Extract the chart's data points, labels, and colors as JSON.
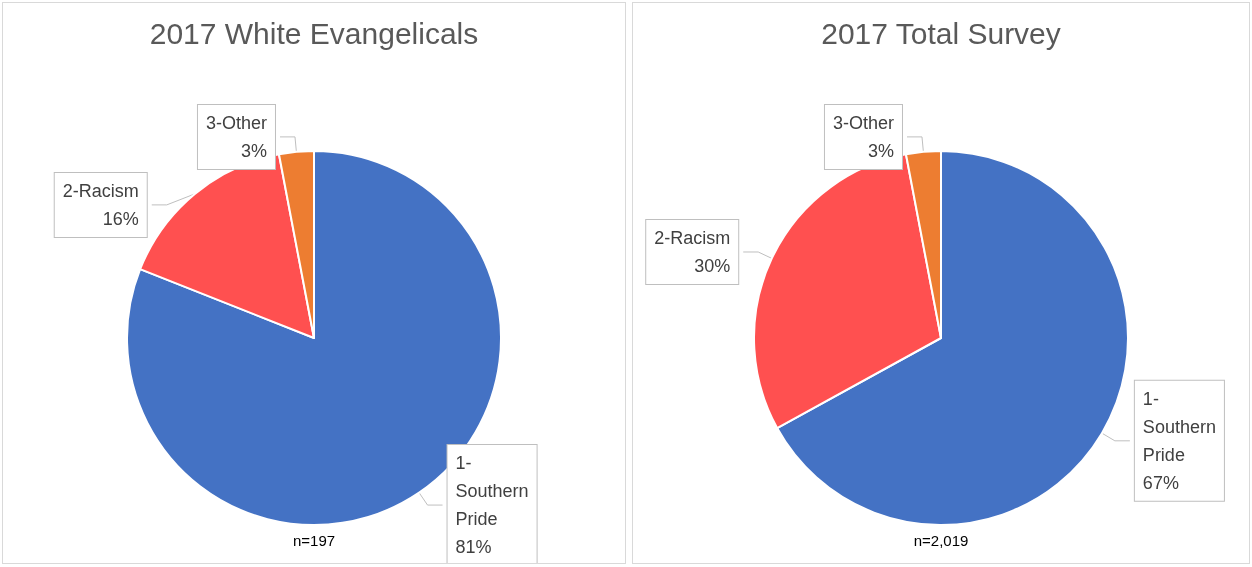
{
  "chart_data": [
    {
      "type": "pie",
      "title": "2017 White Evangelicals",
      "categories": [
        "1-Southern Pride",
        "2-Racism",
        "3-Other"
      ],
      "values": [
        81,
        16,
        3
      ],
      "colors": [
        "#4472c4",
        "#ff5050",
        "#ed7d31"
      ],
      "value_labels": [
        "81%",
        "16%",
        "3%"
      ],
      "annotations": [
        "n=197"
      ]
    },
    {
      "type": "pie",
      "title": "2017 Total Survey",
      "categories": [
        "1-Southern Pride",
        "2-Racism",
        "3-Other"
      ],
      "values": [
        67,
        30,
        3
      ],
      "colors": [
        "#4472c4",
        "#ff5050",
        "#ed7d31"
      ],
      "value_labels": [
        "67%",
        "30%",
        "3%"
      ],
      "annotations": [
        "n=2,019"
      ]
    }
  ]
}
